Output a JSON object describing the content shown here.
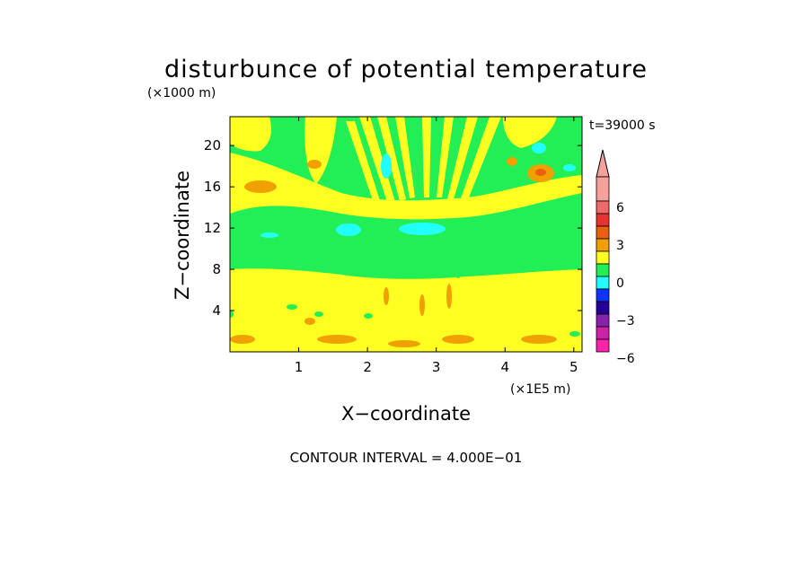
{
  "chart_data": {
    "type": "heatmap",
    "title": "disturbunce of potential temperature",
    "xlabel": "X−coordinate",
    "ylabel": "Z−coordinate",
    "x_unit": "(×1E5 m)",
    "y_unit": "(×1000 m)",
    "time_label": "t=39000 s",
    "footer": "CONTOUR INTERVAL = 4.000E−01",
    "xlim": [
      0,
      5.12
    ],
    "ylim": [
      0,
      22.8
    ],
    "x_ticks": [
      1,
      2,
      3,
      4,
      5
    ],
    "y_ticks": [
      4,
      8,
      12,
      16,
      20
    ],
    "grid": false,
    "colorbar": {
      "placement": "right",
      "levels": [
        -6,
        -3,
        0,
        3,
        6
      ],
      "level_labels": [
        "6",
        "3",
        "0",
        "−3",
        "−6"
      ],
      "top_to_bottom_colors": [
        "#f5a09a",
        "#f06a6a",
        "#e83232",
        "#e86010",
        "#f0a000",
        "#ffff22",
        "#22ee55",
        "#22ffff",
        "#1133ff",
        "#220099",
        "#8822aa",
        "#cc22aa",
        "#ff22aa"
      ]
    },
    "colors": {
      "positive_small": "#ffff22",
      "near_zero": "#22ee55",
      "negative_small": "#22ffff",
      "positive_medium": "#f0a000",
      "positive_large": "#e86010"
    }
  }
}
